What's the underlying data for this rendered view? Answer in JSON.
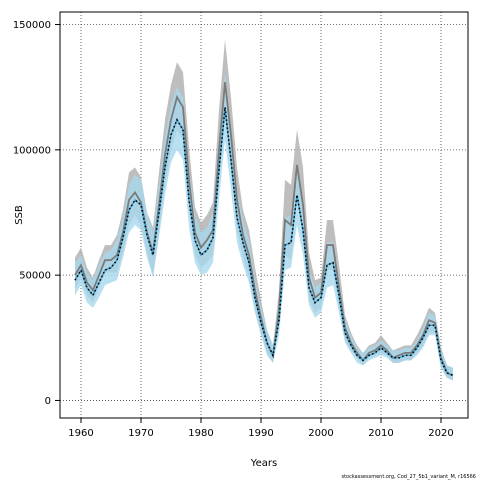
{
  "chart_data": {
    "type": "line",
    "title": "",
    "xlabel": "Years",
    "ylabel": "SSB",
    "credit": "stockassessment.org, Cod_27_5b1_variant_M, r16566",
    "xlim": [
      1956.5,
      2024.5
    ],
    "ylim": [
      -7000,
      155000
    ],
    "x_ticks": [
      1960,
      1970,
      1980,
      1990,
      2000,
      2010,
      2020
    ],
    "x_tick_labels": [
      "1960",
      "1970",
      "1980",
      "1990",
      "2000",
      "2010",
      "2020"
    ],
    "y_ticks": [
      0,
      50000,
      100000,
      150000
    ],
    "y_tick_labels": [
      "0",
      "50000",
      "100000",
      "150000"
    ],
    "grid": true,
    "colors": {
      "grey_band": "#b3b3b3",
      "grey_line": "#7a7a7a",
      "blue_band": "#a8d8ee",
      "blue_line": "#3aa0cf",
      "dotted_line": "#000000"
    },
    "x": [
      1959,
      1960,
      1961,
      1962,
      1963,
      1964,
      1965,
      1966,
      1967,
      1968,
      1969,
      1970,
      1971,
      1972,
      1973,
      1974,
      1975,
      1976,
      1977,
      1978,
      1979,
      1980,
      1981,
      1982,
      1983,
      1984,
      1985,
      1986,
      1987,
      1988,
      1989,
      1990,
      1991,
      1992,
      1993,
      1994,
      1995,
      1996,
      1997,
      1998,
      1999,
      2000,
      2001,
      2002,
      2003,
      2004,
      2005,
      2006,
      2007,
      2008,
      2009,
      2010,
      2011,
      2012,
      2013,
      2014,
      2015,
      2016,
      2017,
      2018,
      2019,
      2020,
      2021,
      2022
    ],
    "series": [
      {
        "estimate": [
          50000,
          54000,
          47000,
          44000,
          50000,
          56000,
          56000,
          58000,
          67000,
          80000,
          83000,
          79000,
          67000,
          59000,
          78000,
          98000,
          112000,
          121000,
          117000,
          88000,
          67000,
          61000,
          64000,
          68000,
          100000,
          127000,
          106000,
          80000,
          66000,
          58000,
          44000,
          33000,
          23000,
          18000,
          36000,
          72000,
          70000,
          94000,
          78000,
          49000,
          41000,
          43000,
          62000,
          62000,
          45000,
          29000,
          23000,
          19000,
          16000,
          19000,
          20000,
          22000,
          20000,
          17000,
          18000,
          19000,
          19000,
          22000,
          26000,
          32000,
          31000,
          17000,
          11000,
          10000
        ],
        "lower": [
          44000,
          49000,
          42000,
          39000,
          45000,
          51000,
          51000,
          51000,
          59000,
          70000,
          74000,
          70000,
          59000,
          50000,
          67000,
          86000,
          100000,
          108000,
          104000,
          76000,
          58000,
          53000,
          55000,
          58000,
          87000,
          112000,
          92000,
          68000,
          57000,
          49000,
          36000,
          27000,
          19000,
          15000,
          30000,
          58000,
          56000,
          80000,
          65000,
          40000,
          35000,
          37000,
          52000,
          52000,
          37000,
          24000,
          20000,
          17000,
          14000,
          17000,
          18000,
          19000,
          18000,
          15000,
          15000,
          16000,
          16000,
          19000,
          22000,
          27000,
          27000,
          13000,
          9000,
          8000
        ],
        "upper": [
          57000,
          61000,
          53000,
          49000,
          56000,
          62000,
          62000,
          66000,
          76000,
          91000,
          93000,
          89000,
          75000,
          69000,
          91000,
          112000,
          126000,
          135000,
          131000,
          101000,
          77000,
          71000,
          74000,
          79000,
          116000,
          144000,
          121000,
          93000,
          76000,
          68000,
          53000,
          40000,
          28000,
          22000,
          44000,
          88000,
          86000,
          108000,
          93000,
          59000,
          48000,
          49000,
          72000,
          72000,
          54000,
          34000,
          27000,
          22000,
          19000,
          22000,
          23000,
          26000,
          23000,
          20000,
          21000,
          22000,
          22000,
          26000,
          31000,
          37000,
          35000,
          21000,
          14000,
          13000
        ]
      },
      {
        "estimate": [
          48000,
          52000,
          45000,
          42000,
          47000,
          52000,
          53000,
          56000,
          65000,
          76000,
          80000,
          78000,
          66000,
          58000,
          75000,
          93000,
          106000,
          112000,
          108000,
          80000,
          64000,
          58000,
          60000,
          65000,
          92000,
          117000,
          96000,
          73000,
          63000,
          55000,
          41000,
          31000,
          23000,
          18000,
          32000,
          62000,
          63000,
          82000,
          68000,
          45000,
          39000,
          41000,
          54000,
          55000,
          42000,
          27000,
          22000,
          18000,
          16000,
          18000,
          19000,
          21000,
          19000,
          17000,
          17000,
          18000,
          18000,
          21000,
          25000,
          30000,
          30000,
          16000,
          11000,
          10000
        ],
        "lower": [
          42000,
          46000,
          39000,
          37000,
          41000,
          46000,
          47000,
          48000,
          57000,
          67000,
          70000,
          68000,
          57000,
          49000,
          65000,
          82000,
          95000,
          100000,
          96000,
          69000,
          55000,
          50000,
          51000,
          55000,
          80000,
          104000,
          84000,
          63000,
          54000,
          47000,
          35000,
          26000,
          18000,
          15000,
          26000,
          52000,
          53000,
          70000,
          58000,
          38000,
          33000,
          35000,
          45000,
          46000,
          35000,
          23000,
          19000,
          15000,
          14000,
          16000,
          17000,
          18000,
          17000,
          15000,
          15000,
          16000,
          16000,
          18000,
          21000,
          26000,
          26000,
          13000,
          9000,
          8000
        ],
        "upper": [
          55000,
          58000,
          51000,
          48000,
          54000,
          59000,
          60000,
          64000,
          73000,
          86000,
          90000,
          88000,
          75000,
          67000,
          86000,
          105000,
          118000,
          125000,
          121000,
          92000,
          74000,
          67000,
          69000,
          75000,
          105000,
          131000,
          108000,
          84000,
          72000,
          64000,
          48000,
          37000,
          28000,
          22000,
          39000,
          73000,
          74000,
          95000,
          79000,
          52000,
          45000,
          47000,
          63000,
          63000,
          49000,
          32000,
          26000,
          21000,
          19000,
          21000,
          22000,
          24000,
          22000,
          20000,
          20000,
          21000,
          21000,
          24000,
          29000,
          35000,
          34000,
          20000,
          14000,
          13000
        ]
      }
    ]
  }
}
